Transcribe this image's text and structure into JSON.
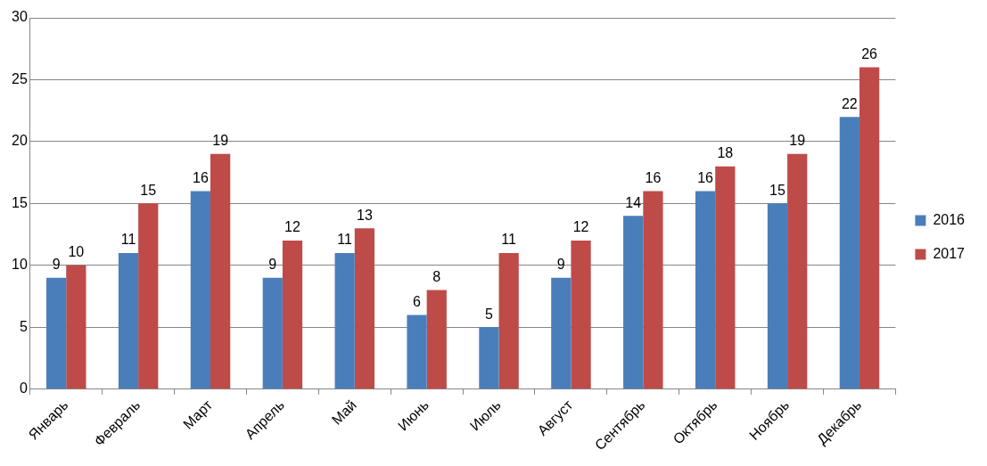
{
  "chart_data": {
    "type": "bar",
    "categories": [
      "Январь",
      "Февраль",
      "Март",
      "Апрель",
      "Май",
      "Июнь",
      "Июль",
      "Август",
      "Сентябрь",
      "Октябрь",
      "Ноябрь",
      "Декабрь"
    ],
    "series": [
      {
        "name": "2016",
        "color": "#4a7ebb",
        "values": [
          9,
          11,
          16,
          9,
          11,
          6,
          5,
          9,
          14,
          16,
          15,
          22
        ]
      },
      {
        "name": "2017",
        "color": "#be4b48",
        "values": [
          10,
          15,
          19,
          12,
          13,
          8,
          11,
          12,
          16,
          18,
          19,
          26
        ]
      }
    ],
    "ylim": [
      0,
      30
    ],
    "yticks": [
      0,
      5,
      10,
      15,
      20,
      25,
      30
    ],
    "grid": "y",
    "legend": "right",
    "data_labels": true
  }
}
